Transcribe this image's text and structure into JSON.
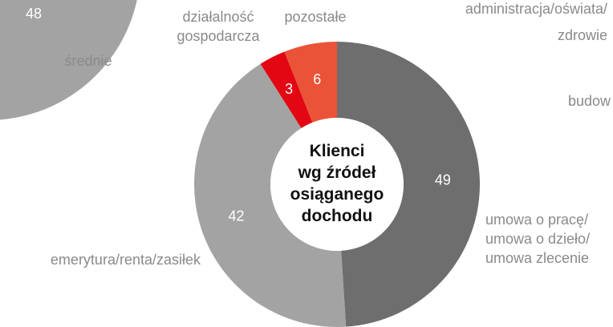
{
  "chart_data": [
    {
      "type": "donut",
      "title": [
        "Klienci",
        "wg źródeł",
        "osiąganego",
        "dochodu"
      ],
      "categories": [
        [
          "umowa o pracę/",
          "umowa o dzieło/",
          "umowa zlecenie"
        ],
        [
          "emerytura/renta/zasiłek"
        ],
        [
          "działalność",
          "gospodarcza"
        ],
        [
          "pozostałe"
        ]
      ],
      "values": [
        49,
        42,
        3,
        6
      ],
      "colors": [
        "#6e6e6e",
        "#a3a3a3",
        "#e30613",
        "#ea5338"
      ]
    },
    {
      "type": "pie",
      "categories": [
        [
          "średnie"
        ]
      ],
      "values": [
        48
      ],
      "colors": [
        "#a3a3a3"
      ]
    },
    {
      "type": "labels",
      "categories": [
        [
          "administracja/oświata/",
          "zdrowie"
        ],
        [
          "budow"
        ]
      ]
    }
  ]
}
